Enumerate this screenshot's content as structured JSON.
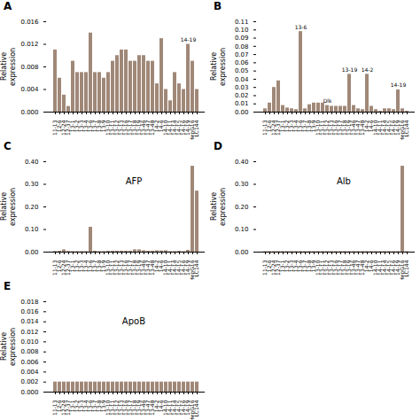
{
  "chart_data": [
    {
      "type": "bar",
      "title": "A",
      "ylabel": "Relative\nexpression",
      "categories": [
        "11-13",
        "12-6",
        "12-24",
        "12-37",
        "13-1",
        "13-2",
        "13-3",
        "13-4",
        "13-6",
        "13-7",
        "13-8",
        "13-9",
        "13-10",
        "13-11",
        "13-12",
        "13-13",
        "13-16",
        "13-17",
        "13-18",
        "13-19",
        "13-46",
        "13-47",
        "13-48",
        "14-2",
        "14-6",
        "14-10",
        "14-11",
        "14-14",
        "14-15",
        "14-16",
        "14-19",
        "HepG16",
        "LC144"
      ],
      "values": [
        0.011,
        0.006,
        0.003,
        0.001,
        0.009,
        0.007,
        0.007,
        0.007,
        0.014,
        0.007,
        0.007,
        0.006,
        0.007,
        0.009,
        0.01,
        0.011,
        0.011,
        0.009,
        0.009,
        0.01,
        0.01,
        0.009,
        0.009,
        0.005,
        0.013,
        0.004,
        0.002,
        0.007,
        0.005,
        0.004,
        0.012,
        0.009,
        0.004
      ],
      "color": "#a08878",
      "ylim": [
        0,
        0.016
      ],
      "yticks": [
        {
          "value": 0,
          "label": "0.000"
        },
        0.004,
        0.008,
        0.012,
        0.016
      ],
      "grid": false,
      "annotations": [
        {
          "text": "14-19",
          "x": "14-19"
        }
      ]
    },
    {
      "type": "bar",
      "title": "B",
      "ylabel": "Relative\nexpression",
      "categories": [
        "11-13",
        "12-6",
        "12-24",
        "12-37",
        "13-1",
        "13-2",
        "13-3",
        "13-4",
        "13-6",
        "13-7",
        "13-8",
        "13-9",
        "13-10",
        "13-11",
        "13-12",
        "13-13",
        "13-16",
        "13-17",
        "13-18",
        "13-19",
        "13-46",
        "13-47",
        "13-48",
        "14-2",
        "14-6",
        "14-10",
        "14-11",
        "14-14",
        "14-15",
        "14-16",
        "14-19",
        "HepG16",
        "LC144"
      ],
      "values": [
        0.004,
        0.011,
        0.03,
        0.038,
        0.008,
        0.005,
        0.004,
        0.003,
        0.098,
        0.004,
        0.009,
        0.011,
        0.011,
        0.011,
        0.008,
        0.007,
        0.007,
        0.007,
        0.007,
        0.046,
        0.008,
        0.004,
        0.003,
        0.046,
        0.007,
        0.003,
        0.001,
        0.004,
        0.004,
        0.003,
        0.027,
        0.004,
        0.001
      ],
      "color": "#a08878",
      "ylim": [
        0,
        0.11
      ],
      "yticks": [
        {
          "value": 0,
          "label": "0.00"
        },
        0.01,
        0.02,
        0.03,
        0.04,
        0.05,
        0.06,
        0.07,
        0.08,
        0.09,
        {
          "value": 0.1,
          "label": "0.10"
        },
        0.11
      ],
      "grid": false,
      "annotations": [
        {
          "text": "13-6",
          "x": "13-6"
        },
        {
          "text": "Dlk",
          "x": "13-12"
        },
        {
          "text": "13-19",
          "x": "13-19"
        },
        {
          "text": "14-2",
          "x": "14-2"
        },
        {
          "text": "14-19",
          "x": "14-19"
        }
      ]
    },
    {
      "type": "bar",
      "title": "C",
      "ylabel": "Relative\nexpression",
      "categories": [
        "11-13",
        "12-6",
        "12-24",
        "12-37",
        "13-1",
        "13-2",
        "13-3",
        "13-4",
        "13-6",
        "13-7",
        "13-8",
        "13-9",
        "13-10",
        "13-11",
        "13-12",
        "13-13",
        "13-16",
        "13-17",
        "13-18",
        "13-19",
        "13-46",
        "13-47",
        "13-48",
        "14-2",
        "14-6",
        "14-10",
        "14-11",
        "14-14",
        "14-15",
        "14-16",
        "14-19",
        "HepG16",
        "LC144"
      ],
      "values": [
        0.003,
        0.004,
        0.01,
        0.003,
        0.002,
        0.002,
        0.002,
        0.002,
        0.11,
        0.004,
        0.002,
        0.002,
        0.004,
        0.004,
        0.004,
        0.004,
        0.004,
        0.004,
        0.01,
        0.01,
        0.006,
        0.004,
        0.004,
        0.006,
        0.005,
        0.006,
        0.002,
        0.002,
        0.004,
        0.002,
        0.008,
        0.38,
        0.27
      ],
      "color": "#a08878",
      "ylim": [
        0,
        0.4
      ],
      "yticks": [
        {
          "value": 0,
          "label": "0.00"
        },
        {
          "value": 0.1,
          "label": "0.10"
        },
        {
          "value": 0.2,
          "label": "0.20"
        },
        {
          "value": 0.3,
          "label": "0.30"
        },
        {
          "value": 0.4,
          "label": "0.40"
        }
      ],
      "grid": false,
      "annotations": [
        {
          "text": "AFP"
        }
      ]
    },
    {
      "type": "bar",
      "title": "D",
      "ylabel": "Relative\nexpression",
      "categories": [
        "11-13",
        "12-6",
        "12-24",
        "12-37",
        "13-1",
        "13-2",
        "13-3",
        "13-4",
        "13-6",
        "13-7",
        "13-8",
        "13-9",
        "13-10",
        "13-11",
        "13-12",
        "13-13",
        "13-16",
        "13-17",
        "13-18",
        "13-19",
        "13-46",
        "13-47",
        "13-48",
        "14-2",
        "14-6",
        "14-10",
        "14-11",
        "14-14",
        "14-15",
        "14-16",
        "14-19",
        "HepG16",
        "LC144"
      ],
      "values": [
        0.002,
        0.002,
        0.002,
        0.002,
        0.002,
        0.002,
        0.002,
        0.002,
        0.002,
        0.002,
        0.002,
        0.002,
        0.002,
        0.002,
        0.002,
        0.002,
        0.002,
        0.002,
        0.002,
        0.002,
        0.002,
        0.002,
        0.002,
        0.002,
        0.002,
        0.002,
        0.002,
        0.002,
        0.002,
        0.002,
        0.002,
        0.38,
        0.002
      ],
      "color": "#a08878",
      "ylim": [
        0,
        0.4
      ],
      "yticks": [
        {
          "value": 0,
          "label": "0.00"
        },
        {
          "value": 0.1,
          "label": "0.10"
        },
        {
          "value": 0.2,
          "label": "0.20"
        },
        {
          "value": 0.3,
          "label": "0.30"
        },
        {
          "value": 0.4,
          "label": "0.40"
        }
      ],
      "grid": false,
      "annotations": [
        {
          "text": "Alb"
        }
      ]
    },
    {
      "type": "bar",
      "title": "E",
      "ylabel": "Relative\nexpression",
      "categories": [
        "11-13",
        "12-6",
        "12-24",
        "12-37",
        "13-1",
        "13-2",
        "13-3",
        "13-4",
        "13-6",
        "13-7",
        "13-8",
        "13-9",
        "13-10",
        "13-11",
        "13-12",
        "13-13",
        "13-16",
        "13-17",
        "13-18",
        "13-19",
        "13-46",
        "13-47",
        "13-48",
        "14-2",
        "14-6",
        "14-10",
        "14-11",
        "14-14",
        "14-15",
        "14-16",
        "14-19",
        "HepG16",
        "LC144"
      ],
      "values": [
        0.002,
        0.002,
        0.002,
        0.002,
        0.002,
        0.002,
        0.002,
        0.002,
        0.002,
        0.002,
        0.002,
        0.002,
        0.002,
        0.002,
        0.002,
        0.002,
        0.002,
        0.002,
        0.002,
        0.002,
        0.002,
        0.002,
        0.002,
        0.002,
        0.002,
        0.002,
        0.002,
        0.002,
        0.002,
        0.002,
        0.002,
        0.002,
        0.002
      ],
      "color": "#a08878",
      "ylim": [
        0,
        0.018
      ],
      "yticks": [
        {
          "value": 0,
          "label": "0.000"
        },
        0.002,
        0.004,
        0.006,
        0.008,
        {
          "value": 0.01,
          "label": "0.010"
        },
        0.012,
        0.014,
        0.016,
        0.018
      ],
      "grid": false,
      "annotations": [
        {
          "text": "ApoB"
        }
      ]
    }
  ]
}
